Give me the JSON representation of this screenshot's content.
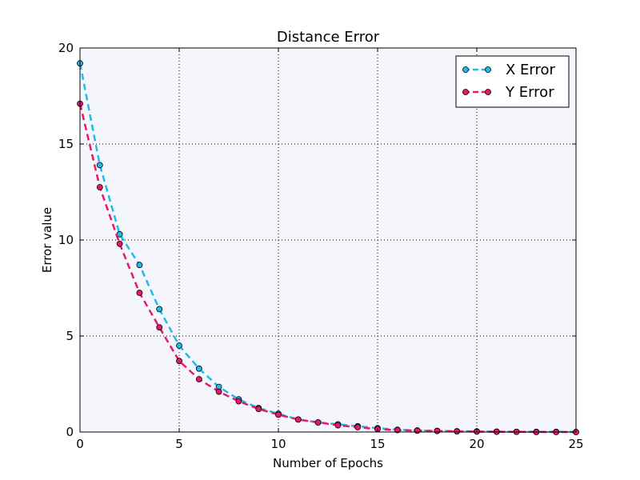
{
  "chart_data": {
    "type": "line",
    "title": "Distance Error",
    "xlabel": "Number of Epochs",
    "ylabel": "Error value",
    "xlim": [
      0,
      25
    ],
    "ylim": [
      0,
      20
    ],
    "xticks": [
      0,
      5,
      10,
      15,
      20,
      25
    ],
    "yticks": [
      0,
      5,
      10,
      15,
      20
    ],
    "grid": true,
    "legend_position": "top-right",
    "background_color": "#f4f6fb",
    "x": [
      0,
      1,
      2,
      3,
      4,
      5,
      6,
      7,
      8,
      9,
      10,
      11,
      12,
      13,
      14,
      15,
      16,
      17,
      18,
      19,
      20,
      21,
      22,
      23,
      24,
      25
    ],
    "series": [
      {
        "name": "X Error",
        "color": "#1fbbe9",
        "style": "dashed",
        "marker": "circle",
        "values": [
          19.2,
          13.9,
          10.3,
          8.7,
          6.4,
          4.5,
          3.3,
          2.35,
          1.7,
          1.25,
          0.95,
          0.65,
          0.5,
          0.4,
          0.3,
          0.2,
          0.12,
          0.08,
          0.06,
          0.04,
          0.03,
          0.02,
          0.01,
          0.01,
          0.01,
          0.0
        ]
      },
      {
        "name": "Y Error",
        "color": "#e8186b",
        "style": "dashed",
        "marker": "circle",
        "values": [
          17.1,
          12.75,
          9.8,
          7.25,
          5.45,
          3.7,
          2.75,
          2.1,
          1.6,
          1.2,
          0.9,
          0.65,
          0.5,
          0.35,
          0.25,
          0.15,
          0.1,
          0.07,
          0.05,
          0.03,
          0.02,
          0.01,
          0.01,
          0.0,
          0.0,
          0.0
        ]
      }
    ]
  }
}
